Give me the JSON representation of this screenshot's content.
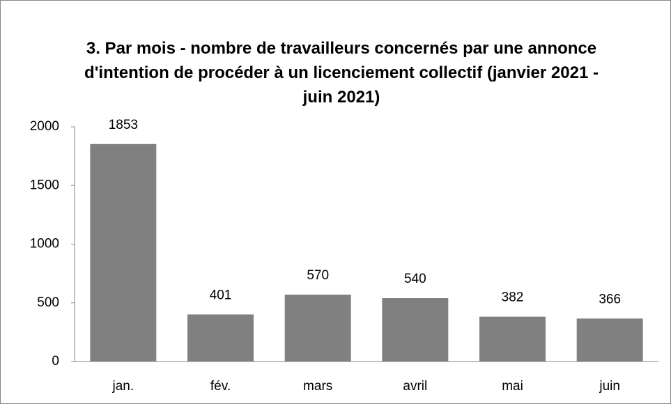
{
  "chart_data": {
    "type": "bar",
    "title": "3. Par mois - nombre de travailleurs concernés par une annonce d'intention de procéder à un licenciement collectif (janvier 2021 - juin 2021)",
    "categories": [
      "jan.",
      "fév.",
      "mars",
      "avril",
      "mai",
      "juin"
    ],
    "values": [
      1853,
      401,
      570,
      540,
      382,
      366
    ],
    "color": "#808080",
    "ylim": [
      0,
      2000
    ],
    "yticks": [
      0,
      500,
      1000,
      1500,
      2000
    ],
    "grid": false
  }
}
